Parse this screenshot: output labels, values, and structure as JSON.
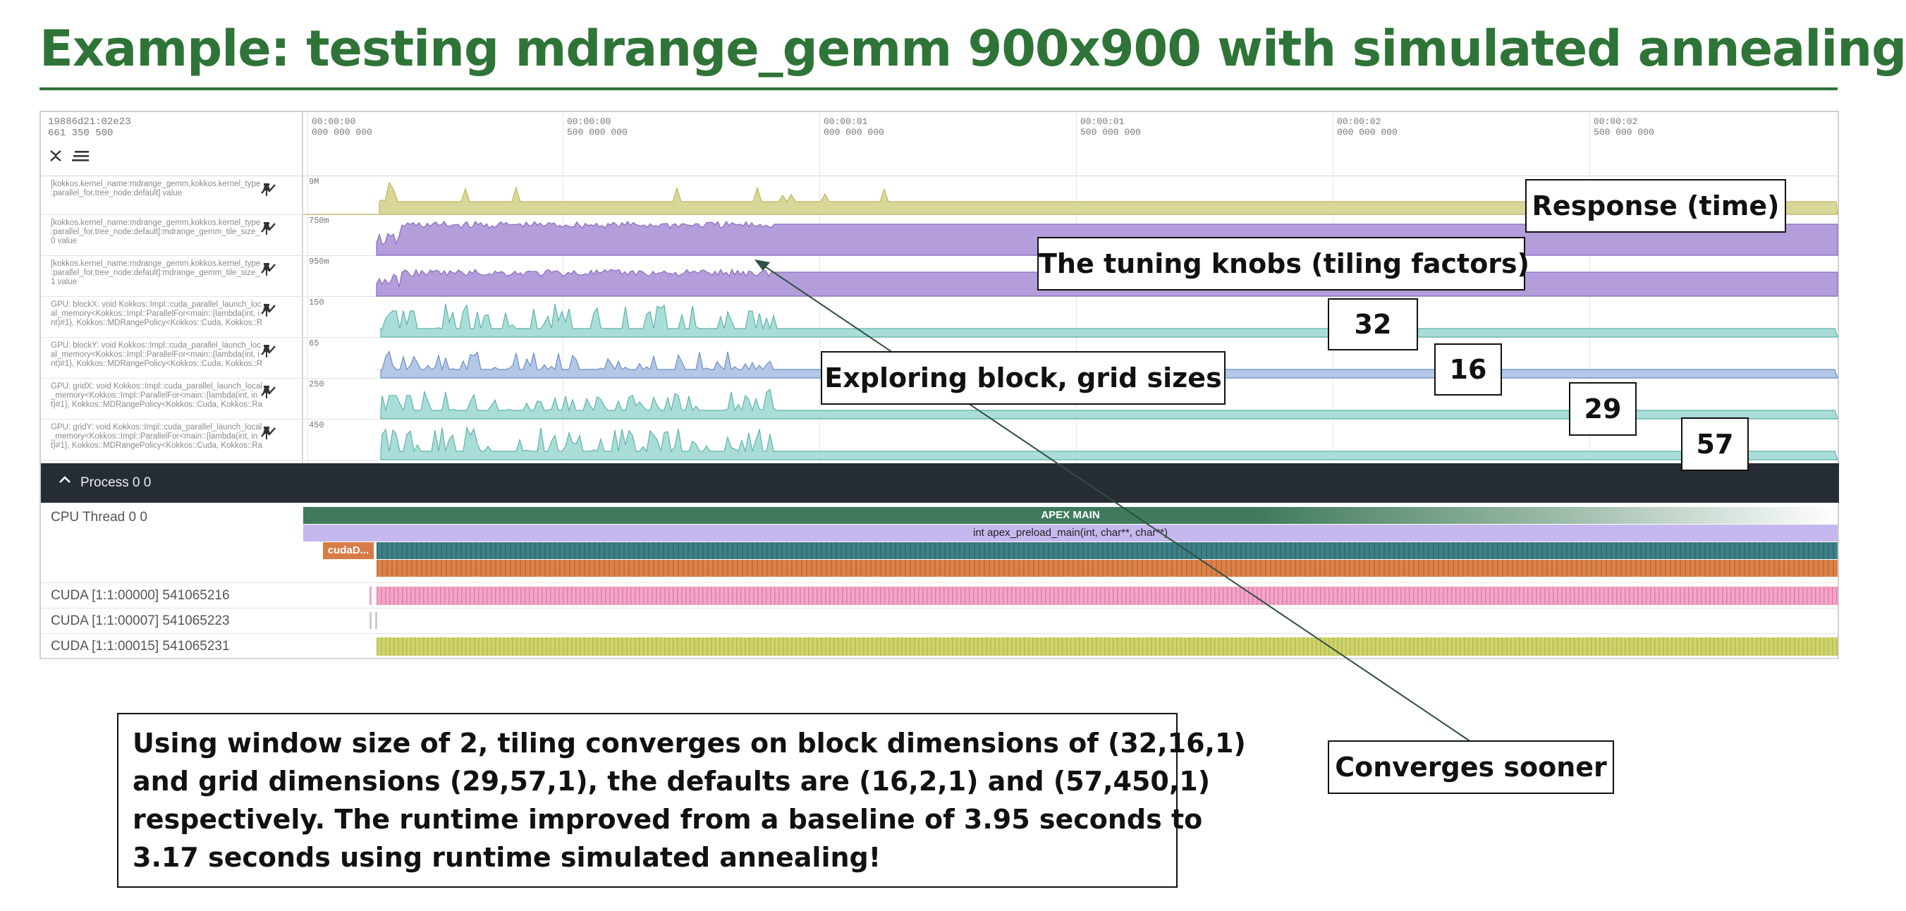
{
  "slide": {
    "title": "Example: testing mdrange_gemm 900x900 with simulated annealing"
  },
  "trace": {
    "header": {
      "info_line1": "19886d21:02e23",
      "info_line2": "661 350 500",
      "collapse_icon": "collapse-all-icon",
      "list_icon": "list-icon"
    },
    "ticks": [
      {
        "t": "00:00:00",
        "ns": "000 000 000"
      },
      {
        "t": "00:00:00",
        "ns": "500 000 000"
      },
      {
        "t": "00:00:01",
        "ns": "000 000 000"
      },
      {
        "t": "00:00:01",
        "ns": "500 000 000"
      },
      {
        "t": "00:00:02",
        "ns": "000 000 000"
      },
      {
        "t": "00:00:02",
        "ns": "500 000 000"
      }
    ],
    "counters": [
      {
        "l1": "[kokkos.kernel_name:mdrange_gemm,kokkos.kernel_type",
        "l2": ":parallel_for,tree_node:default] value",
        "l3": "",
        "max": "9M",
        "color": "#d9d69a",
        "stroke": "#bdb85c"
      },
      {
        "l1": "[kokkos.kernel_name:mdrange_gemm,kokkos.kernel_type",
        "l2": ":parallel_for,tree_node:default]:mdrange_gemm_tile_size_",
        "l3": "0 value",
        "max": "750m",
        "color": "#b39ddb",
        "stroke": "#8a6cc4"
      },
      {
        "l1": "[kokkos.kernel_name:mdrange_gemm,kokkos.kernel_type",
        "l2": ":parallel_for,tree_node:default]:mdrange_gemm_tile_size_",
        "l3": "1 value",
        "max": "950m",
        "color": "#b39ddb",
        "stroke": "#8a6cc4"
      },
      {
        "l1": "GPU: blockX: void Kokkos::Impl::cuda_parallel_launch_loc",
        "l2": "al_memory<Kokkos::Impl::ParallelFor<main::{lambda(int, i",
        "l3": "nt)#1}, Kokkos::MDRangePolicy<Kokkos::Cuda, Kokkos::R",
        "max": "150",
        "color": "#a9ddd8",
        "stroke": "#5fb3ab"
      },
      {
        "l1": "GPU: blockY: void Kokkos::Impl::cuda_parallel_launch_loc",
        "l2": "al_memory<Kokkos::Impl::ParallelFor<main::{lambda(int, i",
        "l3": "nt)#1}, Kokkos::MDRangePolicy<Kokkos::Cuda, Kokkos::R",
        "max": "65",
        "color": "#b3c7e6",
        "stroke": "#6f8fc6"
      },
      {
        "l1": "GPU: gridX: void Kokkos::Impl::cuda_parallel_launch_local",
        "l2": "_memory<Kokkos::Impl::ParallelFor<main::{lambda(int, in",
        "l3": "t)#1}, Kokkos::MDRangePolicy<Kokkos::Cuda, Kokkos::Ra",
        "max": "250",
        "color": "#a9ddd8",
        "stroke": "#5fb3ab"
      },
      {
        "l1": "GPU: gridY: void Kokkos::Impl::cuda_parallel_launch_local",
        "l2": "_memory<Kokkos::Impl::ParallelFor<main::{lambda(int, in",
        "l3": "t)#1}, Kokkos::MDRangePolicy<Kokkos::Cuda, Kokkos::Ra",
        "max": "450",
        "color": "#a9ddd8",
        "stroke": "#5fb3ab"
      }
    ],
    "counter_icons": {
      "graph": "line-chart-icon",
      "pin": "pin-icon"
    },
    "process": {
      "label": "Process 0 0",
      "icon": "chevron-up-icon"
    },
    "threads": {
      "cpu_label": "CPU Thread 0 0",
      "apex_main": "APEX MAIN",
      "preload": "int apex_preload_main(int, char**, char**)",
      "cuda_slice": "cudaD...",
      "cuda_rows": [
        {
          "label": "CUDA [1:1:00000] 541065216",
          "color": "#f3a5c7",
          "stroke": "#e07fae"
        },
        {
          "label": "CUDA [1:1:00007] 541065223",
          "color": "#cccccc",
          "stroke": "#bbbbbb"
        },
        {
          "label": "CUDA [1:1:00015] 541065231",
          "color": "#cfd36e",
          "stroke": "#b9bd4e"
        }
      ]
    }
  },
  "callouts": {
    "response": "Response (time)",
    "knobs": "The tuning knobs (tiling factors)",
    "exploring": "Exploring block, grid sizes",
    "v32": "32",
    "v16": "16",
    "v29": "29",
    "v57": "57",
    "converges": "Converges sooner"
  },
  "summary": "Using window size of 2, tiling converges on block dimensions of (32,16,1)\nand grid dimensions (29,57,1), the defaults are (16,2,1) and (57,450,1)\nrespectively. The runtime improved from a baseline of 3.95 seconds to\n3.17 seconds using runtime simulated annealing!"
}
